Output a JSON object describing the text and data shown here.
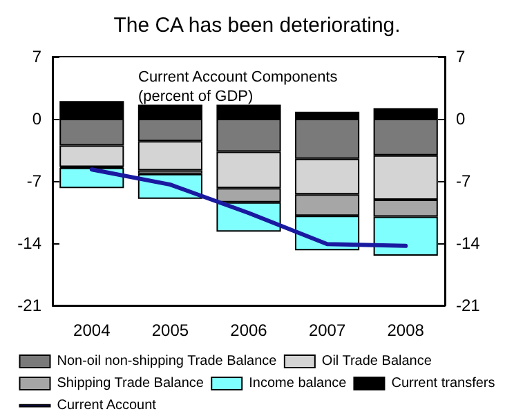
{
  "chart_data": {
    "type": "bar",
    "stacked": true,
    "title": "The CA has been deteriorating.",
    "subtitle": "Current Account Components\n(percent of GDP)",
    "categories": [
      "2004",
      "2005",
      "2006",
      "2007",
      "2008"
    ],
    "series": [
      {
        "name": "Non-oil non-shipping Trade Balance",
        "color": "#7a7a7a",
        "values": [
          -3.0,
          -2.5,
          -3.7,
          -4.5,
          -4.1
        ]
      },
      {
        "name": "Oil Trade Balance",
        "color": "#d4d4d4",
        "values": [
          -2.4,
          -3.3,
          -4.1,
          -4.0,
          -5.0
        ]
      },
      {
        "name": "Shipping Trade Balance",
        "color": "#a6a6a6",
        "values": [
          -0.1,
          -0.4,
          -1.6,
          -2.4,
          -1.9
        ]
      },
      {
        "name": "Income balance",
        "color": "#80ffff",
        "values": [
          -2.3,
          -2.8,
          -3.3,
          -3.9,
          -4.4
        ]
      },
      {
        "name": "Current transfers",
        "color": "#000000",
        "values": [
          2.0,
          1.6,
          1.6,
          0.8,
          1.2
        ]
      },
      {
        "name": "Current Account",
        "type": "line",
        "color": "#1a1aa0",
        "values": [
          -5.7,
          -7.4,
          -10.6,
          -14.1,
          -14.3
        ]
      }
    ],
    "ylim": [
      -21,
      7
    ],
    "yticks": [
      -21,
      -14,
      -7,
      0,
      7
    ],
    "y2lim": [
      -21,
      7
    ],
    "y2ticks": [
      -21,
      -14,
      -7,
      0,
      7
    ],
    "grid": false,
    "legend": "bottom",
    "marker": "none",
    "line_style": "solid"
  }
}
